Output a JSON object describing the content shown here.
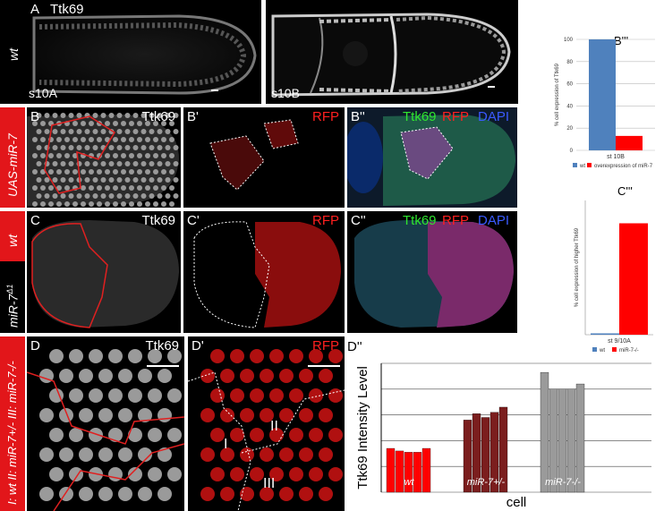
{
  "row_a": {
    "panel_label": "A",
    "stain": "Ttk69",
    "genotype": "wt",
    "stage_left": "s10A",
    "stage_right": "s10B"
  },
  "row_b": {
    "genotype": "UAS-miR-7",
    "p1": {
      "label": "B",
      "stain": "Ttk69"
    },
    "p2": {
      "label": "B'",
      "stain": "RFP"
    },
    "p3": {
      "label": "B''",
      "stain_green": "Ttk69",
      "stain_red": "RFP",
      "stain_blue": "DAPI"
    }
  },
  "row_c": {
    "genotype_top": "wt",
    "genotype_bottom": "miR-7",
    "genotype_bottom_sup": "Δ1",
    "p1": {
      "label": "C",
      "stain": "Ttk69"
    },
    "p2": {
      "label": "C'",
      "stain": "RFP"
    },
    "p3": {
      "label": "C''",
      "stain_green": "Ttk69",
      "stain_red": "RFP",
      "stain_blue": "DAPI"
    }
  },
  "row_d": {
    "side_label": "I: wt  II: miR-7+/-  III: miR-7-/-",
    "p1": {
      "label": "D",
      "stain": "Ttk69"
    },
    "p2": {
      "label": "D'",
      "stain": "RFP",
      "region1": "I",
      "region2": "II",
      "region3": "III"
    }
  },
  "colors": {
    "wt": "#4f81bd",
    "mir7": "#ff0000",
    "het": "#7b1e1e",
    "null": "#9a9a9a"
  },
  "chart_data": [
    {
      "panel_label": "B'''",
      "type": "bar",
      "ylabel": "% cell expression of Ttk69",
      "category": "st 10B",
      "ylim": [
        0,
        100
      ],
      "yticks": [
        "0",
        "20",
        "40",
        "60",
        "80",
        "100"
      ],
      "series": [
        {
          "name": "wt",
          "values": [
            100
          ]
        },
        {
          "name": "overexpression of miR-7",
          "values": [
            13
          ]
        }
      ]
    },
    {
      "panel_label": "C'''",
      "type": "bar",
      "ylabel": "% cell expression of higher Ttk69",
      "category": "st 9/10A",
      "ylim": [
        0,
        100
      ],
      "series": [
        {
          "name": "wt",
          "values": [
            1
          ]
        },
        {
          "name": "miR-7-/-",
          "values": [
            83
          ]
        }
      ]
    },
    {
      "panel_label": "D''",
      "type": "bar",
      "ylabel": "Ttk69 Intensity Level",
      "xlabel": "cell",
      "ylim": [
        0,
        100
      ],
      "groups": [
        {
          "name": "wt",
          "values": [
            34,
            32,
            31,
            31,
            34
          ]
        },
        {
          "name": "miR-7+/-",
          "values": [
            56,
            61,
            58,
            62,
            66
          ]
        },
        {
          "name": "miR-7-/-",
          "values": [
            93,
            80,
            80,
            80,
            84
          ]
        }
      ]
    }
  ]
}
